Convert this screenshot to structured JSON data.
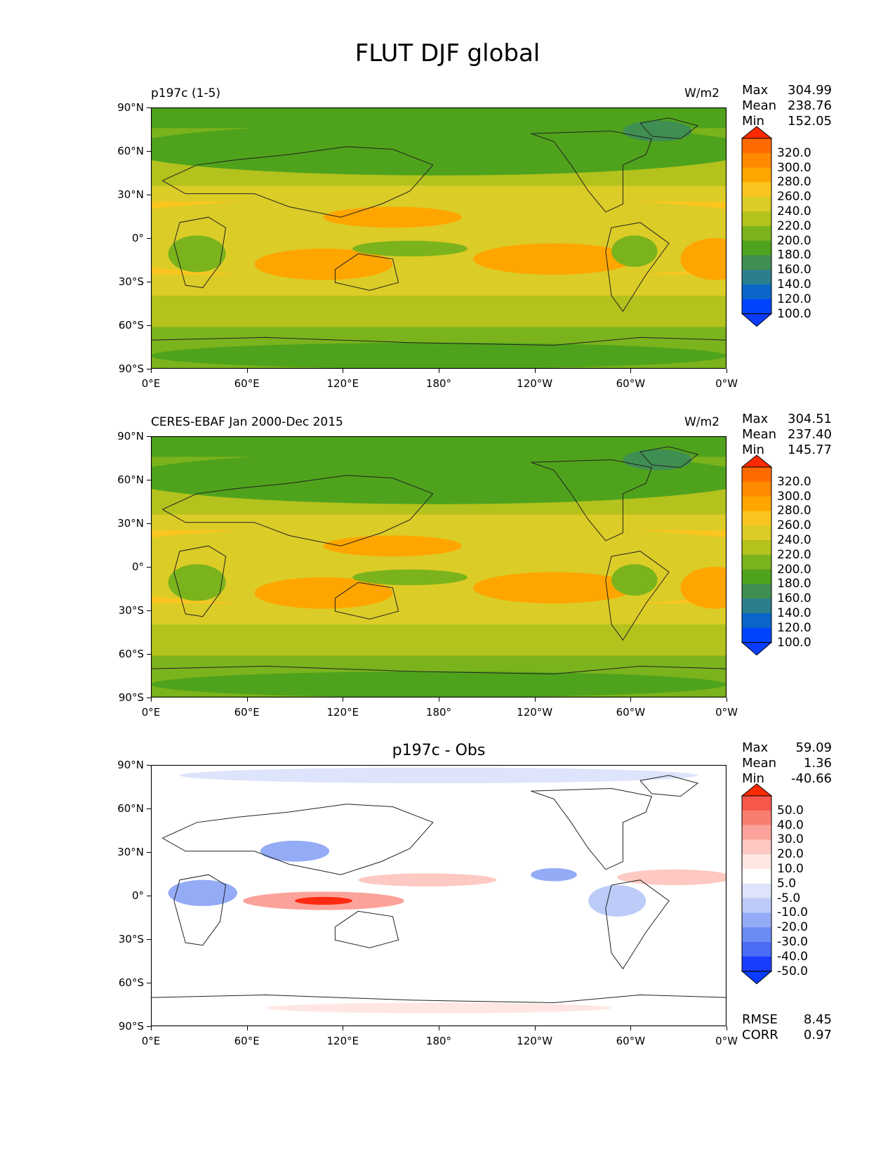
{
  "figure_title": "FLUT DJF global",
  "panels": [
    {
      "left_title": "p197c (1-5)",
      "right_title": "W/m2",
      "center_title": "",
      "stats": {
        "max_label": "Max",
        "max": "304.99",
        "mean_label": "Mean",
        "mean": "238.76",
        "min_label": "Min",
        "min": "152.05"
      },
      "colorbar_labels": [
        "320.0",
        "300.0",
        "280.0",
        "260.0",
        "240.0",
        "220.0",
        "200.0",
        "180.0",
        "160.0",
        "140.0",
        "120.0",
        "100.0"
      ],
      "colorbar_colors": [
        "#ff2a00",
        "#ff6a00",
        "#ff8a00",
        "#ffa500",
        "#fbc51f",
        "#dccc27",
        "#b4c21d",
        "#7bb31c",
        "#4fa31c",
        "#3f8e52",
        "#2a7e8e",
        "#0a66c8",
        "#0044ff"
      ],
      "ext_top": "#ff2a00",
      "ext_bottom": "#0a3cff"
    },
    {
      "left_title": "CERES-EBAF Jan 2000-Dec 2015",
      "right_title": "W/m2",
      "center_title": "",
      "stats": {
        "max_label": "Max",
        "max": "304.51",
        "mean_label": "Mean",
        "mean": "237.40",
        "min_label": "Min",
        "min": "145.77"
      },
      "colorbar_labels": [
        "320.0",
        "300.0",
        "280.0",
        "260.0",
        "240.0",
        "220.0",
        "200.0",
        "180.0",
        "160.0",
        "140.0",
        "120.0",
        "100.0"
      ],
      "colorbar_colors": [
        "#ff2a00",
        "#ff6a00",
        "#ff8a00",
        "#ffa500",
        "#fbc51f",
        "#dccc27",
        "#b4c21d",
        "#7bb31c",
        "#4fa31c",
        "#3f8e52",
        "#2a7e8e",
        "#0a66c8",
        "#0044ff"
      ],
      "ext_top": "#ff2a00",
      "ext_bottom": "#0a3cff"
    },
    {
      "left_title": "",
      "right_title": "",
      "center_title": "p197c - Obs",
      "stats": {
        "max_label": "Max",
        "max": "59.09",
        "mean_label": "Mean",
        "mean": "1.36",
        "min_label": "Min",
        "min": "-40.66"
      },
      "extra_stats": {
        "rmse_label": "RMSE",
        "rmse": "8.45",
        "corr_label": "CORR",
        "corr": "0.97"
      },
      "colorbar_labels": [
        "50.0",
        "40.0",
        "30.0",
        "20.0",
        "10.0",
        "5.0",
        "-5.0",
        "-10.0",
        "-20.0",
        "-30.0",
        "-40.0",
        "-50.0"
      ],
      "colorbar_colors": [
        "#ff2a10",
        "#f6574a",
        "#f87e72",
        "#fba39a",
        "#fdc9c2",
        "#ffe6e2",
        "#ffffff",
        "#dde4fb",
        "#bccbf8",
        "#94abf6",
        "#6c8cf5",
        "#4a6cf7",
        "#1a3cff"
      ],
      "ext_top": "#ff2a00",
      "ext_bottom": "#0a3cff"
    }
  ],
  "y_ticks": [
    "90°N",
    "60°N",
    "30°N",
    "0°",
    "30°S",
    "60°S",
    "90°S"
  ],
  "x_ticks": [
    "0°E",
    "60°E",
    "120°E",
    "180°",
    "120°W",
    "60°W",
    "0°W"
  ],
  "chart_data": [
    {
      "type": "heatmap",
      "title": "p197c (1-5)",
      "units": "W/m2",
      "x": [
        "0°E",
        "60°E",
        "120°E",
        "180°",
        "120°W",
        "60°W",
        "0°W"
      ],
      "y": [
        "90°N",
        "60°N",
        "30°N",
        "0°",
        "30°S",
        "60°S",
        "90°S"
      ],
      "colorbar_levels": [
        100,
        120,
        140,
        160,
        180,
        200,
        220,
        240,
        260,
        280,
        300,
        320
      ],
      "max": 304.99,
      "mean": 238.76,
      "min": 152.05
    },
    {
      "type": "heatmap",
      "title": "CERES-EBAF Jan 2000-Dec 2015",
      "units": "W/m2",
      "x": [
        "0°E",
        "60°E",
        "120°E",
        "180°",
        "120°W",
        "60°W",
        "0°W"
      ],
      "y": [
        "90°N",
        "60°N",
        "30°N",
        "0°",
        "30°S",
        "60°S",
        "90°S"
      ],
      "colorbar_levels": [
        100,
        120,
        140,
        160,
        180,
        200,
        220,
        240,
        260,
        280,
        300,
        320
      ],
      "max": 304.51,
      "mean": 237.4,
      "min": 145.77
    },
    {
      "type": "heatmap",
      "title": "p197c - Obs",
      "x": [
        "0°E",
        "60°E",
        "120°E",
        "180°",
        "120°W",
        "60°W",
        "0°W"
      ],
      "y": [
        "90°N",
        "60°N",
        "30°N",
        "0°",
        "30°S",
        "60°S",
        "90°S"
      ],
      "colorbar_levels": [
        -50,
        -40,
        -30,
        -20,
        -10,
        -5,
        5,
        10,
        20,
        30,
        40,
        50
      ],
      "max": 59.09,
      "mean": 1.36,
      "min": -40.66,
      "rmse": 8.45,
      "corr": 0.97
    }
  ]
}
